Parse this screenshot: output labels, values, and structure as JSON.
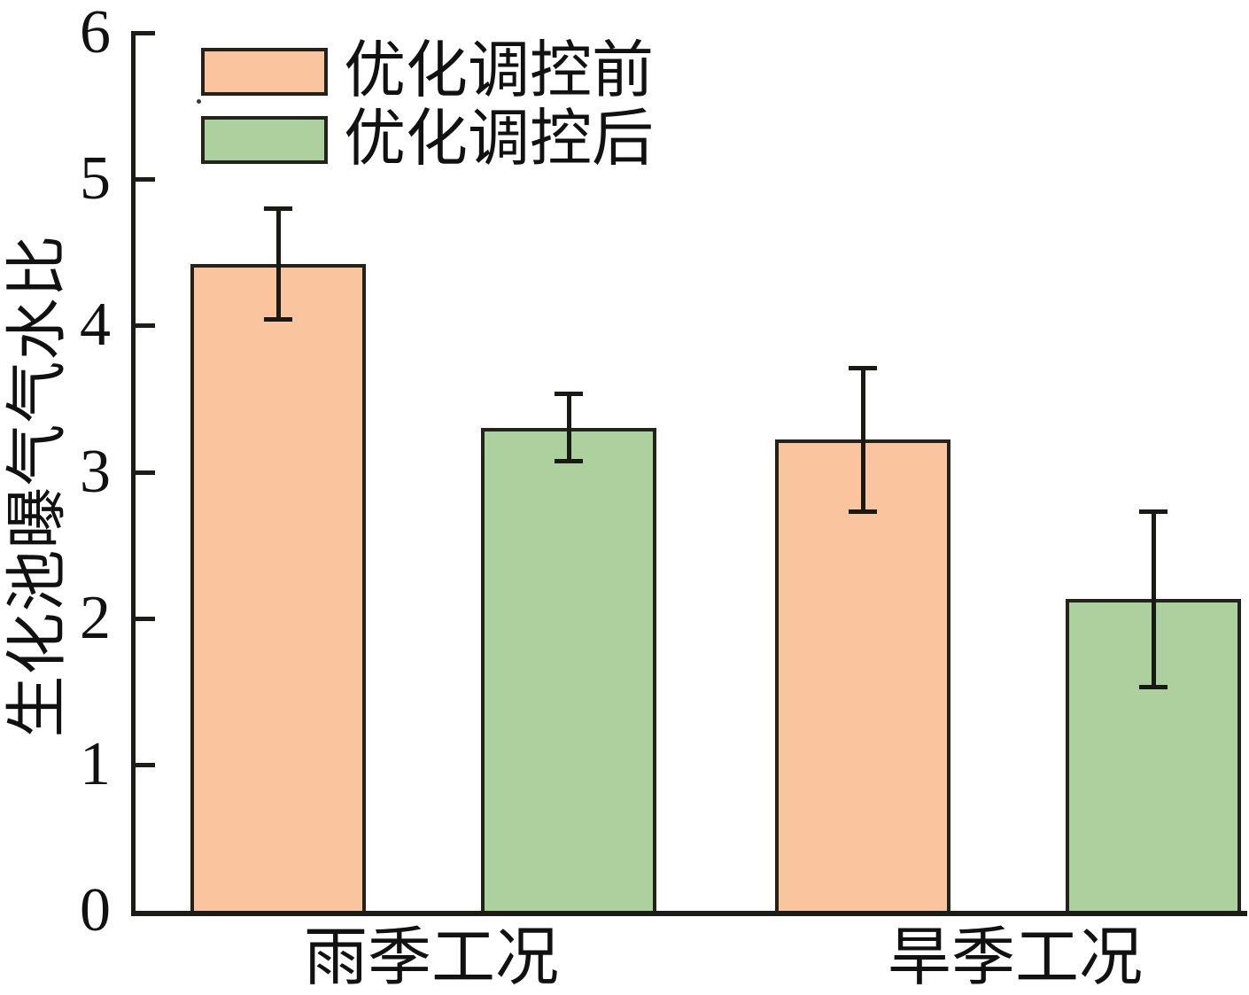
{
  "chart_data": {
    "type": "bar",
    "title": "",
    "xlabel": "",
    "ylabel": "生化池曝气气水比",
    "categories": [
      "雨季工况",
      "旱季工况"
    ],
    "series": [
      {
        "name": "优化调控前",
        "color": "#F9C49E",
        "values": [
          4.42,
          3.22
        ],
        "errors": [
          0.38,
          0.49
        ]
      },
      {
        "name": "优化调控后",
        "color": "#ACD19F",
        "values": [
          3.3,
          2.13
        ],
        "errors": [
          0.23,
          0.6
        ]
      }
    ],
    "ylim": [
      0,
      6
    ],
    "yticks": [
      0,
      1,
      2,
      3,
      4,
      5,
      6
    ],
    "grid": false,
    "legend_position": "top-left",
    "error_bars": true,
    "colors": {
      "bar_border": "#23231c",
      "axis": "#1d1d17",
      "error_bar": "#1a1a14",
      "background": "#ffffff",
      "text": "#111111"
    }
  }
}
